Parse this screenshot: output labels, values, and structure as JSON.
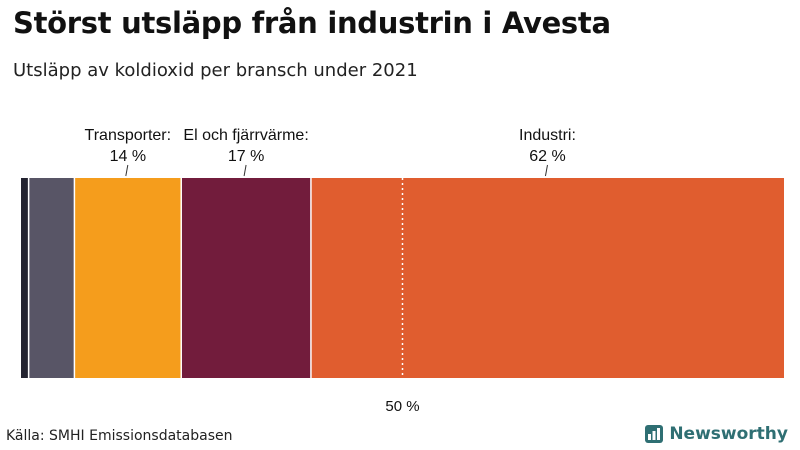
{
  "title": "Störst utsläpp från industrin i Avesta",
  "subtitle": "Utsläpp av koldioxid per bransch under 2021",
  "source": "Källa: SMHI Emissionsdatabasen",
  "brand": {
    "name": "Newsworthy",
    "color": "#2f6f73"
  },
  "chart_data": {
    "type": "bar",
    "orientation": "horizontal-stacked-100",
    "categories": [
      "",
      "Transporter",
      "El och fjärrvärme",
      "Industri"
    ],
    "values": [
      1,
      14,
      17,
      62
    ],
    "colors": [
      "#232330",
      "#585566",
      "#f59d1c",
      "#721c3c",
      "#e05d2f"
    ],
    "segments": [
      {
        "label": "",
        "value": 1,
        "color": "#232330",
        "value_label": ""
      },
      {
        "label": "",
        "value": 6,
        "color": "#585566",
        "value_label": ""
      },
      {
        "label": "Transporter:",
        "value": 14,
        "color": "#f59d1c",
        "value_label": "14 %"
      },
      {
        "label": "El och fjärrvärme:",
        "value": 17,
        "color": "#721c3c",
        "value_label": "17 %"
      },
      {
        "label": "Industri:",
        "value": 62,
        "color": "#e05d2f",
        "value_label": "62 %"
      }
    ],
    "reference_line": {
      "value": 50,
      "label": "50 %"
    },
    "xlim": [
      0,
      100
    ],
    "title": "",
    "xlabel": "",
    "ylabel": ""
  }
}
